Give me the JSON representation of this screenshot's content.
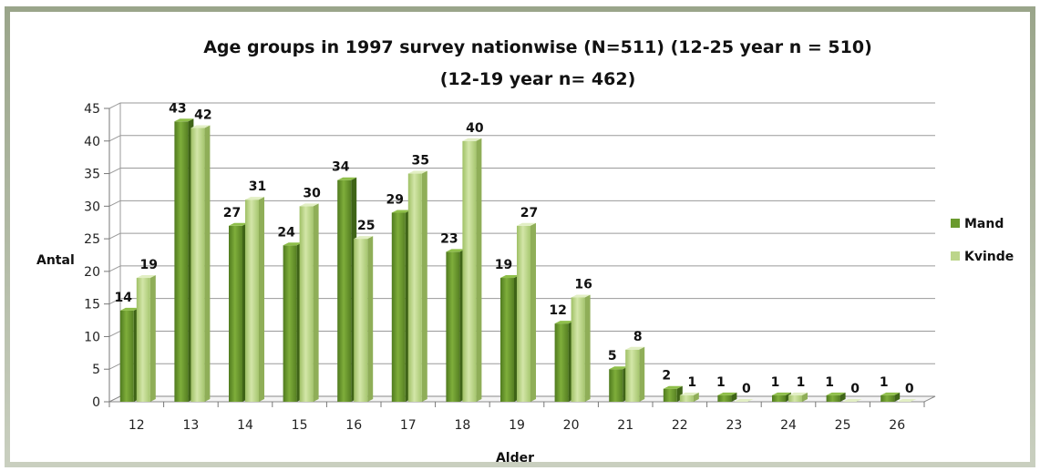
{
  "chart_data": {
    "type": "bar",
    "title_line1": "Age groups in 1997 survey nationwise (N=511)  (12-25 year n = 510)",
    "title_line2": "(12-19 year n= 462)",
    "xlabel": "Alder",
    "ylabel": "Antal",
    "ylim": [
      0,
      45
    ],
    "ytick_step": 5,
    "grid": true,
    "legend_position": "right",
    "categories": [
      "12",
      "13",
      "14",
      "15",
      "16",
      "17",
      "18",
      "19",
      "20",
      "21",
      "22",
      "23",
      "24",
      "25",
      "26"
    ],
    "series": [
      {
        "name": "Mand",
        "color": "#6a9a2e",
        "values": [
          14,
          43,
          27,
          24,
          34,
          29,
          23,
          19,
          12,
          5,
          2,
          1,
          1,
          1,
          1
        ]
      },
      {
        "name": "Kvinde",
        "color": "#bcd58a",
        "values": [
          19,
          42,
          31,
          30,
          25,
          35,
          40,
          27,
          16,
          8,
          1,
          0,
          1,
          0,
          0
        ]
      }
    ]
  }
}
